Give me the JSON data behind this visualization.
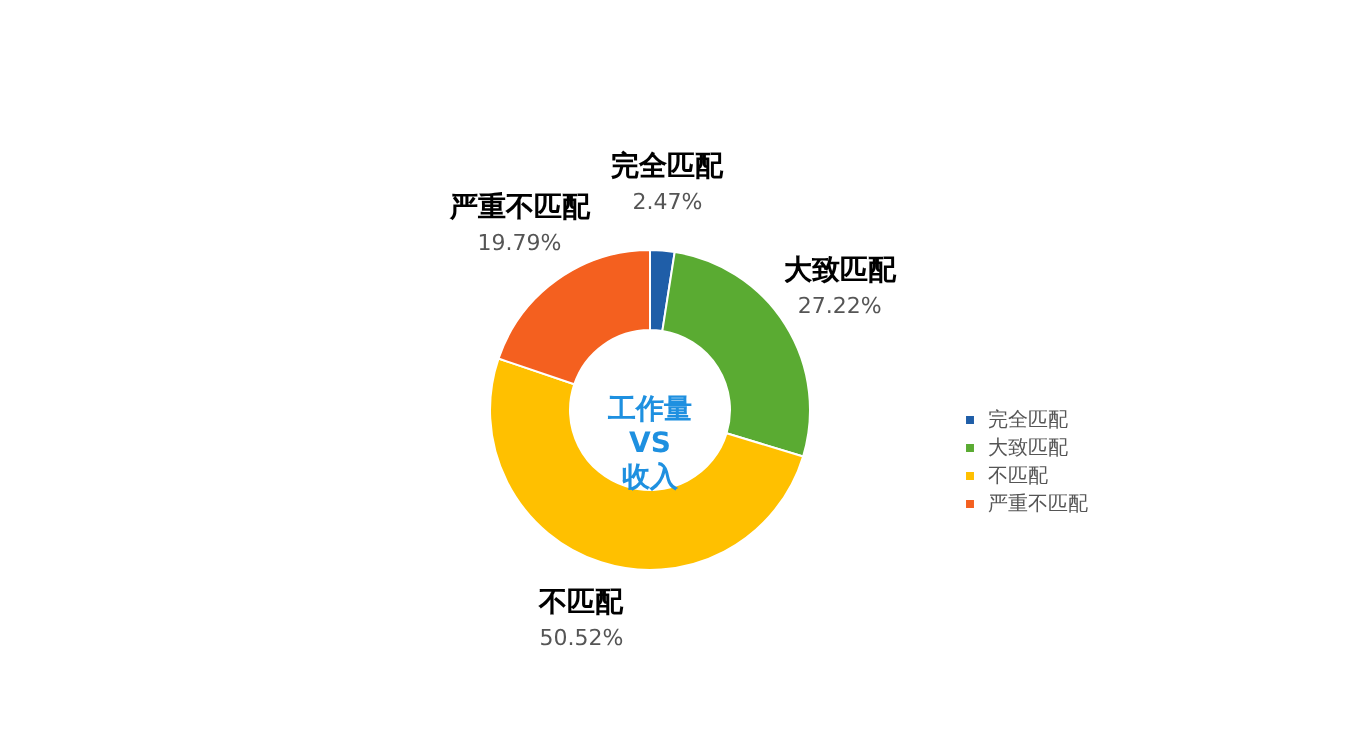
{
  "chart_data": {
    "type": "donut",
    "title": "工作量 VS 收入",
    "categories": [
      "完全匹配",
      "大致匹配",
      "不匹配",
      "严重不匹配"
    ],
    "values": [
      2.47,
      27.22,
      50.52,
      19.79
    ],
    "colors": [
      "#1f5ea8",
      "#5aab32",
      "#ffc000",
      "#f4601f"
    ],
    "value_labels": [
      "2.47%",
      "27.22%",
      "50.52%",
      "19.79%"
    ],
    "legend": "right"
  }
}
